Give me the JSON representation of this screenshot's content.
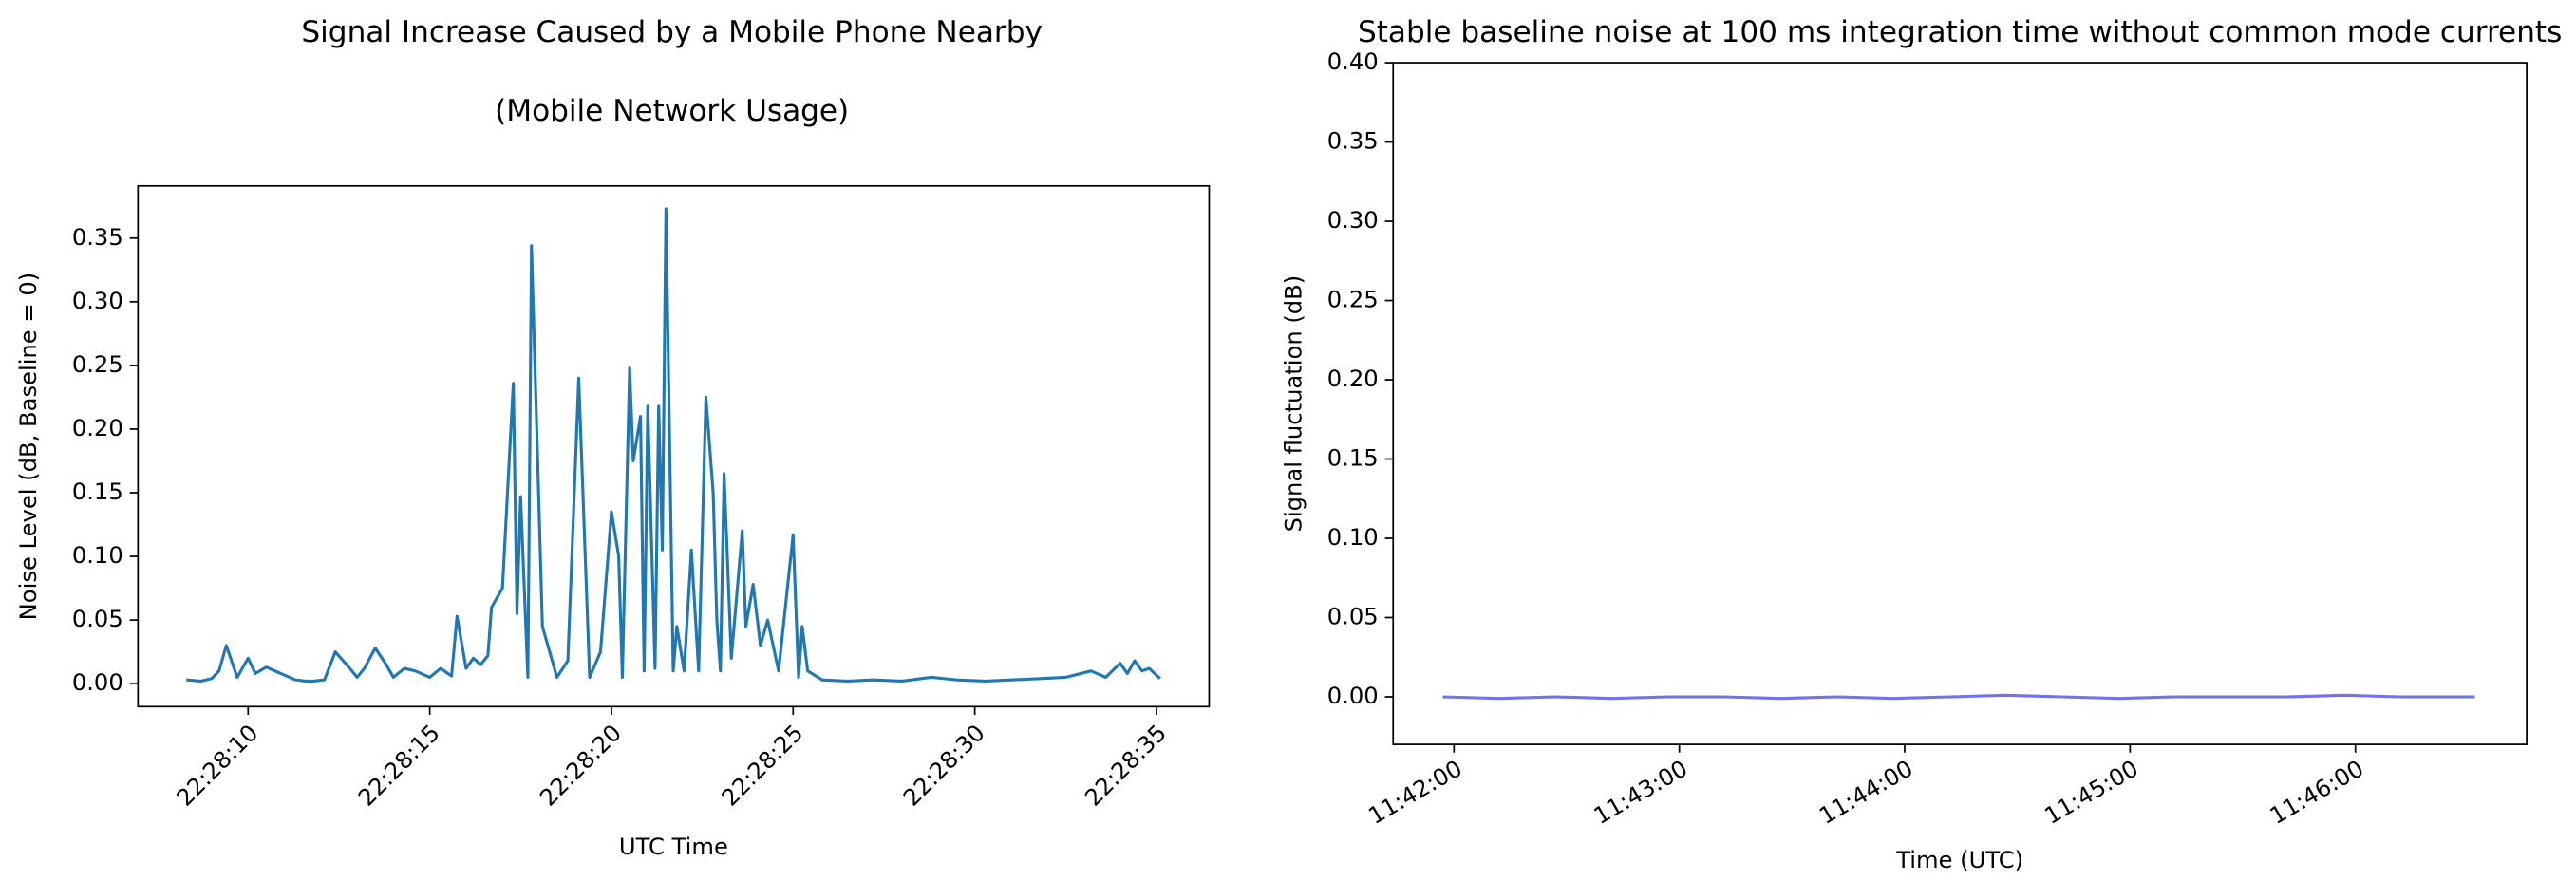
{
  "chart_data": [
    {
      "type": "line",
      "title": "Signal Increase Caused by a Mobile Phone Nearby",
      "subtitle": "(Mobile Network Usage)",
      "x_label": "UTC Time",
      "y_label": "Noise Level (dB, Baseline = 0)",
      "color": "#1f77b4",
      "x": [
        8.3,
        8.7,
        9.0,
        9.2,
        9.4,
        9.7,
        10.0,
        10.2,
        10.5,
        10.9,
        11.3,
        11.6,
        11.8,
        12.1,
        12.4,
        12.8,
        13.0,
        13.2,
        13.5,
        13.8,
        14.0,
        14.3,
        14.6,
        15.0,
        15.3,
        15.6,
        15.75,
        16.0,
        16.2,
        16.4,
        16.6,
        16.7,
        17.0,
        17.3,
        17.4,
        17.5,
        17.7,
        17.8,
        18.1,
        18.5,
        18.8,
        19.1,
        19.4,
        19.7,
        20.0,
        20.2,
        20.3,
        20.5,
        20.6,
        20.8,
        20.9,
        21.0,
        21.2,
        21.3,
        21.4,
        21.5,
        21.7,
        21.8,
        22.0,
        22.2,
        22.4,
        22.6,
        22.8,
        22.9,
        23.0,
        23.1,
        23.3,
        23.6,
        23.7,
        23.9,
        24.1,
        24.3,
        24.6,
        25.0,
        25.15,
        25.25,
        25.4,
        25.8,
        26.5,
        27.2,
        28.0,
        28.8,
        29.5,
        30.3,
        31.0,
        31.8,
        32.5,
        33.2,
        33.6,
        34.0,
        34.2,
        34.4,
        34.6,
        34.8,
        35.1
      ],
      "values": [
        0.003,
        0.002,
        0.004,
        0.01,
        0.03,
        0.005,
        0.02,
        0.008,
        0.013,
        0.008,
        0.003,
        0.002,
        0.002,
        0.003,
        0.025,
        0.012,
        0.005,
        0.012,
        0.028,
        0.015,
        0.005,
        0.012,
        0.01,
        0.005,
        0.012,
        0.006,
        0.053,
        0.012,
        0.02,
        0.015,
        0.022,
        0.06,
        0.075,
        0.236,
        0.055,
        0.147,
        0.005,
        0.344,
        0.045,
        0.005,
        0.018,
        0.24,
        0.005,
        0.025,
        0.135,
        0.1,
        0.005,
        0.248,
        0.175,
        0.21,
        0.01,
        0.218,
        0.012,
        0.218,
        0.105,
        0.373,
        0.01,
        0.045,
        0.01,
        0.105,
        0.01,
        0.225,
        0.15,
        0.05,
        0.01,
        0.165,
        0.02,
        0.12,
        0.045,
        0.078,
        0.03,
        0.05,
        0.01,
        0.117,
        0.005,
        0.045,
        0.01,
        0.003,
        0.002,
        0.003,
        0.002,
        0.005,
        0.003,
        0.002,
        0.003,
        0.004,
        0.005,
        0.01,
        0.005,
        0.016,
        0.008,
        0.018,
        0.01,
        0.012,
        0.004
      ],
      "xlim": [
        6.97,
        36.45
      ],
      "ylim": [
        -0.018,
        0.391
      ],
      "xticks": [
        {
          "value": 10,
          "label": "22:28:10"
        },
        {
          "value": 15,
          "label": "22:28:15"
        },
        {
          "value": 20,
          "label": "22:28:20"
        },
        {
          "value": 25,
          "label": "22:28:25"
        },
        {
          "value": 30,
          "label": "22:28:30"
        },
        {
          "value": 35,
          "label": "22:28:35"
        }
      ],
      "yticks": [
        {
          "value": 0,
          "label": "0.00"
        },
        0.05,
        {
          "value": 0.1,
          "label": "0.10"
        },
        0.15,
        {
          "value": 0.2,
          "label": "0.20"
        },
        0.25,
        {
          "value": 0.3,
          "label": "0.30"
        },
        0.35
      ],
      "xtick_rotation": 45
    },
    {
      "type": "line",
      "title": "Stable baseline noise at 100 ms integration time without common mode currents",
      "x_label": "Time (UTC)",
      "y_label": "Signal fluctuation (dB)",
      "color": "#7070ff",
      "x": [
        41.95,
        42.2,
        42.45,
        42.7,
        42.95,
        43.2,
        43.45,
        43.7,
        43.95,
        44.2,
        44.45,
        44.7,
        44.95,
        45.2,
        45.45,
        45.7,
        45.95,
        46.2,
        46.53
      ],
      "values": [
        0.0,
        -0.001,
        0.0,
        -0.001,
        0.0,
        0.0,
        -0.001,
        0.0,
        -0.001,
        0.0,
        0.001,
        0.0,
        -0.001,
        0.0,
        0.0,
        0.0,
        0.001,
        0.0,
        0.0
      ],
      "xlim": [
        41.73,
        46.76
      ],
      "ylim": [
        -0.03,
        0.4
      ],
      "xticks": [
        {
          "value": 42,
          "label": "11:42:00"
        },
        {
          "value": 43,
          "label": "11:43:00"
        },
        {
          "value": 44,
          "label": "11:44:00"
        },
        {
          "value": 45,
          "label": "11:45:00"
        },
        {
          "value": 46,
          "label": "11:46:00"
        }
      ],
      "yticks": [
        {
          "value": 0,
          "label": "0.00"
        },
        0.05,
        {
          "value": 0.1,
          "label": "0.10"
        },
        0.15,
        {
          "value": 0.2,
          "label": "0.20"
        },
        0.25,
        {
          "value": 0.3,
          "label": "0.30"
        },
        0.35,
        {
          "value": 0.4,
          "label": "0.40"
        }
      ],
      "xtick_rotation": 30
    }
  ]
}
